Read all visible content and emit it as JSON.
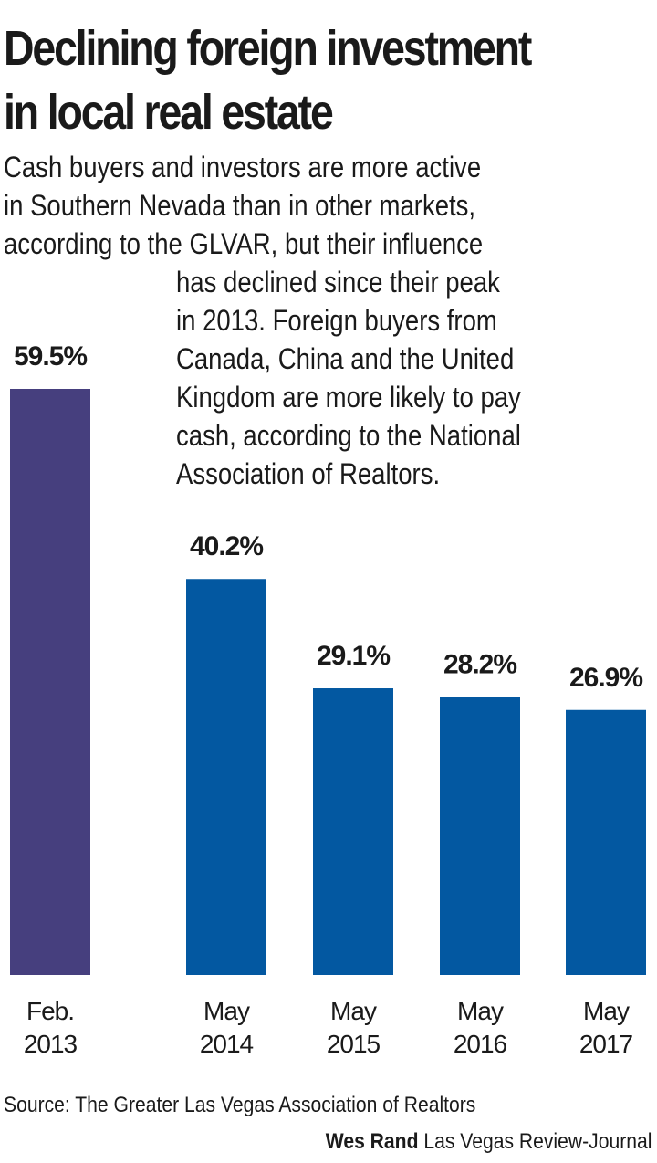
{
  "header": {
    "title_line1": "Declining foreign investment",
    "title_line2": "in local real estate",
    "intro_part1": "Cash buyers and investors are more active\nin Southern Nevada than in other markets,\naccording to the GLVAR, but their influence",
    "intro_part2": "has declined since their peak\nin 2013. Foreign buyers from\nCanada, China and the United\nKingdom are more likely to pay\ncash, according to the National\n Association of Realtors."
  },
  "chart_data": {
    "type": "bar",
    "categories": [
      [
        "Feb.",
        "2013"
      ],
      [
        "May",
        "2014"
      ],
      [
        "May",
        "2015"
      ],
      [
        "May",
        "2016"
      ],
      [
        "May",
        "2017"
      ]
    ],
    "values": [
      59.5,
      40.2,
      29.1,
      28.2,
      26.9
    ],
    "value_labels": [
      "59.5%",
      "40.2%",
      "29.1%",
      "28.2%",
      "26.9%"
    ],
    "colors": [
      "#463f7e",
      "#0358a1",
      "#0358a1",
      "#0358a1",
      "#0358a1"
    ],
    "title": "Declining foreign investment in local real estate",
    "xlabel": "",
    "ylabel": "",
    "ylim": [
      0,
      59.5
    ],
    "grid": false,
    "legend": "none"
  },
  "footer": {
    "source": "Source: The Greater Las Vegas Association of Realtors",
    "author": "Wes Rand",
    "publication": "Las Vegas Review-Journal"
  }
}
